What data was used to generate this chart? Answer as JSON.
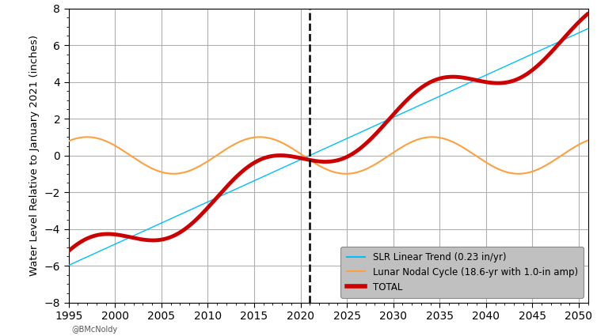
{
  "title": "",
  "ylabel": "Water Level Relative to January 2021 (inches)",
  "xlabel": "",
  "xlim": [
    1995,
    2051
  ],
  "ylim": [
    -8,
    8
  ],
  "xticks": [
    1995,
    2000,
    2005,
    2010,
    2015,
    2020,
    2025,
    2030,
    2035,
    2040,
    2045,
    2050
  ],
  "yticks": [
    -8,
    -6,
    -4,
    -2,
    0,
    2,
    4,
    6,
    8
  ],
  "slr_rate": 0.23,
  "slr_color": "#00bfff",
  "nodal_color": "#ffa040",
  "total_color": "#cc0000",
  "nodal_amplitude": 1.0,
  "nodal_period": 18.6,
  "reference_year": 2021,
  "x_start": 1995,
  "x_end": 2051,
  "dashed_line_x": 2021,
  "legend_labels": [
    "SLR Linear Trend (0.23 in/yr)",
    "Lunar Nodal Cycle (18.6-yr with 1.0-in amp)",
    "TOTAL"
  ],
  "legend_facecolor": "#c0c0c0",
  "background_color": "#ffffff",
  "grid_color": "#b0b0b0",
  "watermark": "@BMcNoldy",
  "nodal_ref_year": 1992.35
}
